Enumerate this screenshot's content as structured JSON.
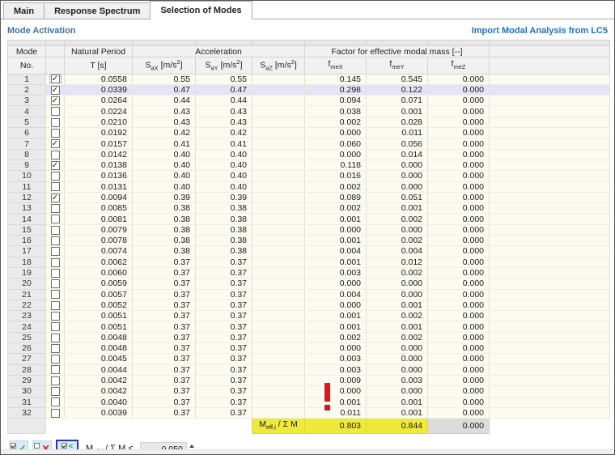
{
  "tabs": [
    {
      "label": "Main",
      "active": false
    },
    {
      "label": "Response Spectrum",
      "active": false
    },
    {
      "label": "Selection of Modes",
      "active": true
    }
  ],
  "header": {
    "title": "Mode Activation",
    "import_link": "Import Modal Analysis from LC5"
  },
  "table": {
    "check_glyph": "✓",
    "head": {
      "mode_line1": "Mode",
      "mode_line2": "No.",
      "period_line1": "Natural Period",
      "period_line2": "T [s]",
      "accel_group": "Acceleration",
      "factor_group": "Factor for effective modal mass [--]",
      "sa_base": "S",
      "sa_sub_x": "aX",
      "sa_sub_y": "aY",
      "sa_sub_z": "aZ",
      "unit_open": " [m/s",
      "unit_sup": "2",
      "unit_close": "]",
      "f_base": "f",
      "f_sub_x": "meX",
      "f_sub_y": "meY",
      "f_sub_z": "meZ"
    },
    "rows": [
      {
        "no": "1",
        "checked": true,
        "focus": true,
        "highlighted": false,
        "t": "0.0558",
        "sax": "0.55",
        "say": "0.55",
        "saz": "",
        "fmex": "0.145",
        "fmey": "0.545",
        "fmez": "0.000"
      },
      {
        "no": "2",
        "checked": true,
        "focus": false,
        "highlighted": true,
        "t": "0.0339",
        "sax": "0.47",
        "say": "0.47",
        "saz": "",
        "fmex": "0.298",
        "fmey": "0.122",
        "fmez": "0.000"
      },
      {
        "no": "3",
        "checked": true,
        "focus": false,
        "highlighted": false,
        "t": "0.0264",
        "sax": "0.44",
        "say": "0.44",
        "saz": "",
        "fmex": "0.094",
        "fmey": "0.071",
        "fmez": "0.000"
      },
      {
        "no": "4",
        "checked": false,
        "focus": false,
        "highlighted": false,
        "t": "0.0224",
        "sax": "0.43",
        "say": "0.43",
        "saz": "",
        "fmex": "0.038",
        "fmey": "0.001",
        "fmez": "0.000"
      },
      {
        "no": "5",
        "checked": false,
        "focus": false,
        "highlighted": false,
        "t": "0.0210",
        "sax": "0.43",
        "say": "0.43",
        "saz": "",
        "fmex": "0.002",
        "fmey": "0.028",
        "fmez": "0.000"
      },
      {
        "no": "6",
        "checked": false,
        "focus": false,
        "highlighted": false,
        "t": "0.0192",
        "sax": "0.42",
        "say": "0.42",
        "saz": "",
        "fmex": "0.000",
        "fmey": "0.011",
        "fmez": "0.000"
      },
      {
        "no": "7",
        "checked": true,
        "focus": false,
        "highlighted": false,
        "t": "0.0157",
        "sax": "0.41",
        "say": "0.41",
        "saz": "",
        "fmex": "0.060",
        "fmey": "0.056",
        "fmez": "0.000"
      },
      {
        "no": "8",
        "checked": false,
        "focus": false,
        "highlighted": false,
        "t": "0.0142",
        "sax": "0.40",
        "say": "0.40",
        "saz": "",
        "fmex": "0.000",
        "fmey": "0.014",
        "fmez": "0.000"
      },
      {
        "no": "9",
        "checked": true,
        "focus": false,
        "highlighted": false,
        "t": "0.0138",
        "sax": "0.40",
        "say": "0.40",
        "saz": "",
        "fmex": "0.118",
        "fmey": "0.000",
        "fmez": "0.000"
      },
      {
        "no": "10",
        "checked": false,
        "focus": false,
        "highlighted": false,
        "t": "0.0136",
        "sax": "0.40",
        "say": "0.40",
        "saz": "",
        "fmex": "0.016",
        "fmey": "0.000",
        "fmez": "0.000"
      },
      {
        "no": "11",
        "checked": false,
        "focus": false,
        "highlighted": false,
        "t": "0.0131",
        "sax": "0.40",
        "say": "0.40",
        "saz": "",
        "fmex": "0.002",
        "fmey": "0.000",
        "fmez": "0.000"
      },
      {
        "no": "12",
        "checked": true,
        "focus": false,
        "highlighted": false,
        "t": "0.0094",
        "sax": "0.39",
        "say": "0.39",
        "saz": "",
        "fmex": "0.089",
        "fmey": "0.051",
        "fmez": "0.000"
      },
      {
        "no": "13",
        "checked": false,
        "focus": false,
        "highlighted": false,
        "t": "0.0085",
        "sax": "0.38",
        "say": "0.38",
        "saz": "",
        "fmex": "0.002",
        "fmey": "0.001",
        "fmez": "0.000"
      },
      {
        "no": "14",
        "checked": false,
        "focus": false,
        "highlighted": false,
        "t": "0.0081",
        "sax": "0.38",
        "say": "0.38",
        "saz": "",
        "fmex": "0.001",
        "fmey": "0.002",
        "fmez": "0.000"
      },
      {
        "no": "15",
        "checked": false,
        "focus": false,
        "highlighted": false,
        "t": "0.0079",
        "sax": "0.38",
        "say": "0.38",
        "saz": "",
        "fmex": "0.000",
        "fmey": "0.000",
        "fmez": "0.000"
      },
      {
        "no": "16",
        "checked": false,
        "focus": false,
        "highlighted": false,
        "t": "0.0078",
        "sax": "0.38",
        "say": "0.38",
        "saz": "",
        "fmex": "0.001",
        "fmey": "0.002",
        "fmez": "0.000"
      },
      {
        "no": "17",
        "checked": false,
        "focus": false,
        "highlighted": false,
        "t": "0.0074",
        "sax": "0.38",
        "say": "0.38",
        "saz": "",
        "fmex": "0.004",
        "fmey": "0.004",
        "fmez": "0.000"
      },
      {
        "no": "18",
        "checked": false,
        "focus": false,
        "highlighted": false,
        "t": "0.0062",
        "sax": "0.37",
        "say": "0.37",
        "saz": "",
        "fmex": "0.001",
        "fmey": "0.012",
        "fmez": "0.000"
      },
      {
        "no": "19",
        "checked": false,
        "focus": false,
        "highlighted": false,
        "t": "0.0060",
        "sax": "0.37",
        "say": "0.37",
        "saz": "",
        "fmex": "0.003",
        "fmey": "0.002",
        "fmez": "0.000"
      },
      {
        "no": "20",
        "checked": false,
        "focus": false,
        "highlighted": false,
        "t": "0.0059",
        "sax": "0.37",
        "say": "0.37",
        "saz": "",
        "fmex": "0.000",
        "fmey": "0.000",
        "fmez": "0.000"
      },
      {
        "no": "21",
        "checked": false,
        "focus": false,
        "highlighted": false,
        "t": "0.0057",
        "sax": "0.37",
        "say": "0.37",
        "saz": "",
        "fmex": "0.004",
        "fmey": "0.000",
        "fmez": "0.000"
      },
      {
        "no": "22",
        "checked": false,
        "focus": false,
        "highlighted": false,
        "t": "0.0052",
        "sax": "0.37",
        "say": "0.37",
        "saz": "",
        "fmex": "0.000",
        "fmey": "0.001",
        "fmez": "0.000"
      },
      {
        "no": "23",
        "checked": false,
        "focus": false,
        "highlighted": false,
        "t": "0.0051",
        "sax": "0.37",
        "say": "0.37",
        "saz": "",
        "fmex": "0.001",
        "fmey": "0.002",
        "fmez": "0.000"
      },
      {
        "no": "24",
        "checked": false,
        "focus": false,
        "highlighted": false,
        "t": "0.0051",
        "sax": "0.37",
        "say": "0.37",
        "saz": "",
        "fmex": "0.001",
        "fmey": "0.001",
        "fmez": "0.000"
      },
      {
        "no": "25",
        "checked": false,
        "focus": false,
        "highlighted": false,
        "t": "0.0048",
        "sax": "0.37",
        "say": "0.37",
        "saz": "",
        "fmex": "0.002",
        "fmey": "0.002",
        "fmez": "0.000"
      },
      {
        "no": "26",
        "checked": false,
        "focus": false,
        "highlighted": false,
        "t": "0.0048",
        "sax": "0.37",
        "say": "0.37",
        "saz": "",
        "fmex": "0.000",
        "fmey": "0.000",
        "fmez": "0.000"
      },
      {
        "no": "27",
        "checked": false,
        "focus": false,
        "highlighted": false,
        "t": "0.0045",
        "sax": "0.37",
        "say": "0.37",
        "saz": "",
        "fmex": "0.003",
        "fmey": "0.000",
        "fmez": "0.000"
      },
      {
        "no": "28",
        "checked": false,
        "focus": false,
        "highlighted": false,
        "t": "0.0044",
        "sax": "0.37",
        "say": "0.37",
        "saz": "",
        "fmex": "0.003",
        "fmey": "0.000",
        "fmez": "0.000"
      },
      {
        "no": "29",
        "checked": false,
        "focus": false,
        "highlighted": false,
        "t": "0.0042",
        "sax": "0.37",
        "say": "0.37",
        "saz": "",
        "fmex": "0.009",
        "fmey": "0.003",
        "fmez": "0.000"
      },
      {
        "no": "30",
        "checked": false,
        "focus": false,
        "highlighted": false,
        "t": "0.0042",
        "sax": "0.37",
        "say": "0.37",
        "saz": "",
        "fmex": "0.000",
        "fmey": "0.000",
        "fmez": "0.000"
      },
      {
        "no": "31",
        "checked": false,
        "focus": false,
        "highlighted": false,
        "t": "0.0040",
        "sax": "0.37",
        "say": "0.37",
        "saz": "",
        "fmex": "0.001",
        "fmey": "0.001",
        "fmez": "0.000"
      },
      {
        "no": "32",
        "checked": false,
        "focus": false,
        "highlighted": false,
        "t": "0.0039",
        "sax": "0.37",
        "say": "0.37",
        "saz": "",
        "fmex": "0.011",
        "fmey": "0.001",
        "fmez": "0.000"
      }
    ],
    "sum": {
      "label_base": "M",
      "label_sub": "eff,i",
      "label_rest": " / Σ M",
      "fmex": "0.803",
      "fmey": "0.844",
      "fmez": "0.000"
    }
  },
  "toolbar": {
    "activate_glyph": "✓",
    "deactivate_glyph": "✕",
    "criterion_lt": "<",
    "criterion_gt": ">",
    "limit_label_base": "M",
    "limit_label_sub": "eff,i",
    "limit_label_rest": " / Σ M <",
    "limit_value": "0.050"
  },
  "icons": {
    "activate_all": "double-checkbox-green-check",
    "deactivate_all": "double-checkbox-red-x",
    "select_by_criterion": "checkbox-compare-arrows",
    "warning": "red-exclamation",
    "spinner": "up-down-arrows"
  },
  "colors": {
    "sum_highlight": "#EFE93B",
    "row_highlight": "#E4E4F6",
    "section_title_blue": "#44729E",
    "import_link_blue": "#2070C6",
    "warning_red": "#E3131B",
    "focus_border_blue": "#2633C8"
  }
}
